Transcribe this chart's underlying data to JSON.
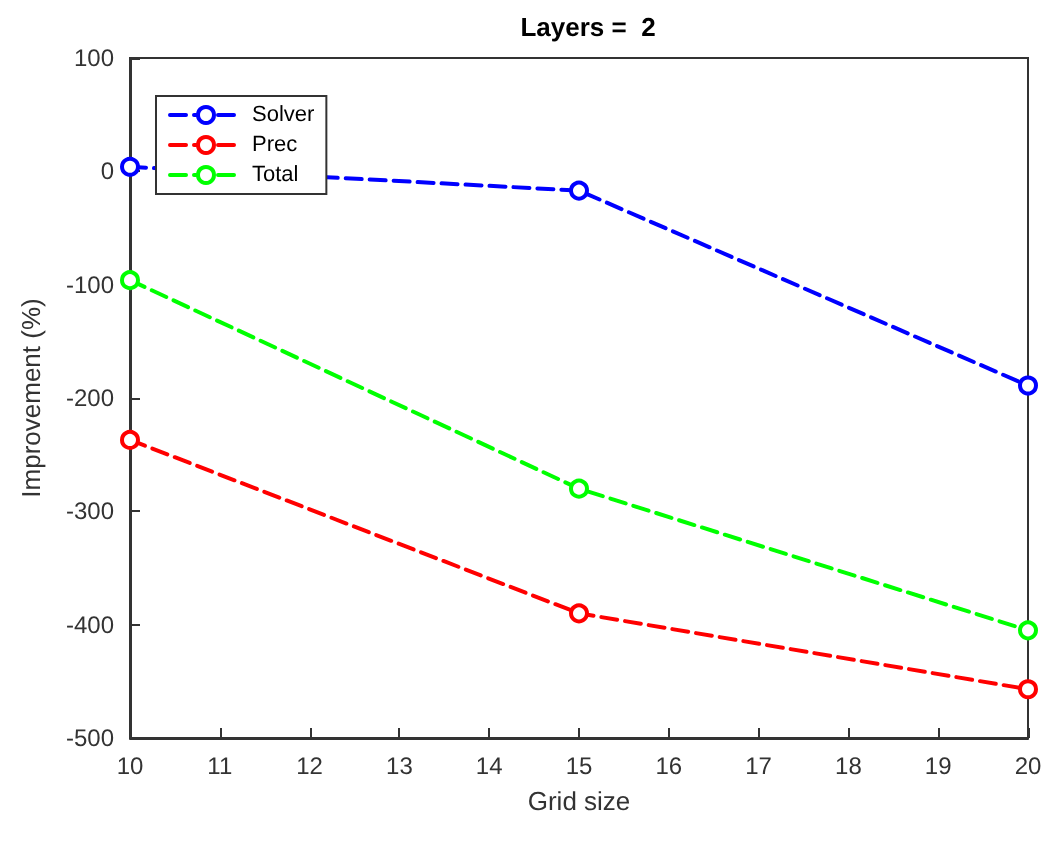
{
  "chart_data": {
    "type": "line",
    "title": "Layers =  2",
    "xlabel": "Grid size",
    "ylabel": "Improvement (%)",
    "x": [
      10,
      15,
      20
    ],
    "series": [
      {
        "name": "Solver",
        "color": "#0000ff",
        "values": [
          4,
          -17,
          -189
        ]
      },
      {
        "name": "Prec",
        "color": "#ff0000",
        "values": [
          -237,
          -390,
          -457
        ]
      },
      {
        "name": "Total",
        "color": "#00ff00",
        "values": [
          -96,
          -280,
          -405
        ]
      }
    ],
    "xlim": [
      10,
      20
    ],
    "xticks": [
      10,
      11,
      12,
      13,
      14,
      15,
      16,
      17,
      18,
      19,
      20
    ],
    "ylim": [
      -500,
      100
    ],
    "yticks": [
      -500,
      -400,
      -300,
      -200,
      -100,
      0,
      100
    ],
    "grid": false,
    "legend": "top left",
    "marker": "circle",
    "line_style": "dashed"
  }
}
